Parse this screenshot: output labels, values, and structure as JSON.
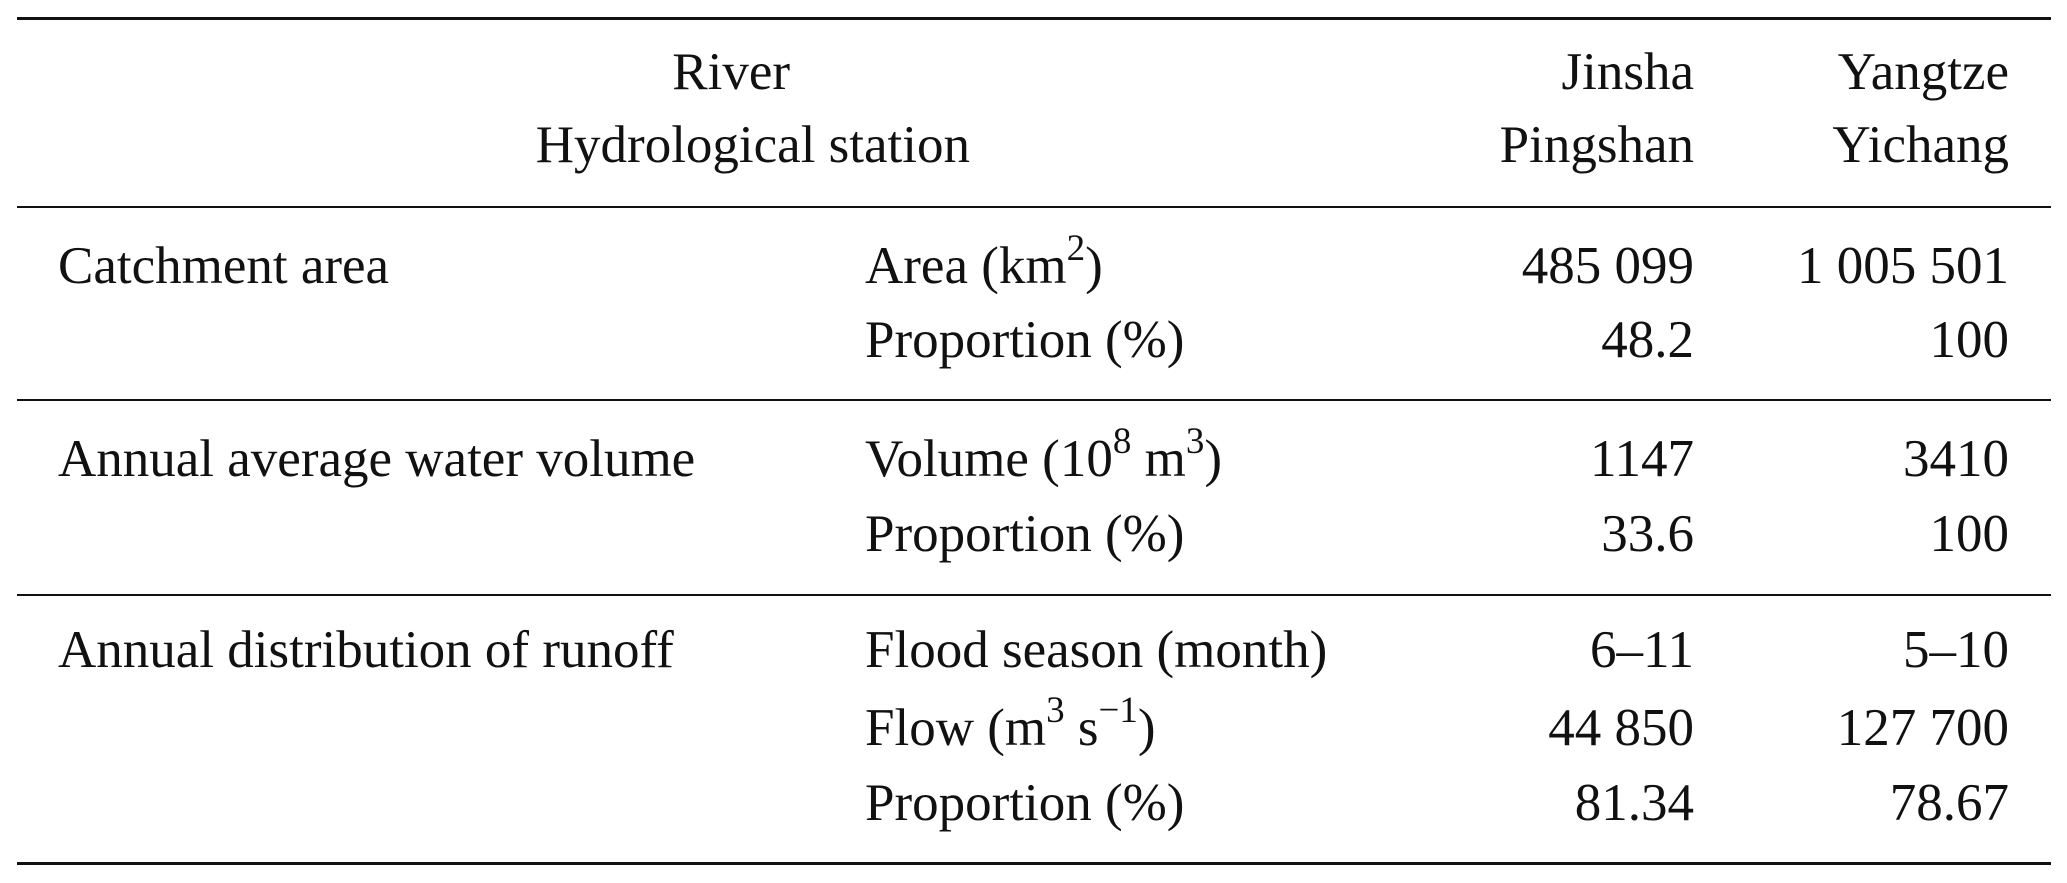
{
  "header": {
    "row1_label": "River",
    "row2_label": "Hydrological station",
    "col1_river": "Jinsha",
    "col1_station": "Pingshan",
    "col2_river": "Yangtze",
    "col2_station": "Yichang"
  },
  "sections": [
    {
      "category": "Catchment area",
      "rows": [
        {
          "metric": "Area (km",
          "sup": "2",
          "metric_tail": ")",
          "jinsha": "485 099",
          "yangtze": "1 005 501"
        },
        {
          "metric": "Proportion (%)",
          "jinsha": "48.2",
          "yangtze": "100"
        }
      ]
    },
    {
      "category": "Annual average water volume",
      "rows": [
        {
          "metric": "Volume (10",
          "sup": "8",
          "metric_mid": " m",
          "sup2": "3",
          "metric_tail": ")",
          "jinsha": "1147",
          "yangtze": "3410"
        },
        {
          "metric": "Proportion (%)",
          "jinsha": "33.6",
          "yangtze": "100"
        }
      ]
    },
    {
      "category": "Annual distribution of runoff",
      "rows": [
        {
          "metric": "Flood season (month)",
          "jinsha": "6–11",
          "yangtze": "5–10"
        },
        {
          "metric": "Flow (m",
          "sup": "3",
          "metric_mid": " s",
          "sup2": "−1",
          "metric_tail": ")",
          "jinsha": "44 850",
          "yangtze": "127 700"
        },
        {
          "metric": "Proportion (%)",
          "jinsha": "81.34",
          "yangtze": "78.67"
        }
      ]
    }
  ]
}
